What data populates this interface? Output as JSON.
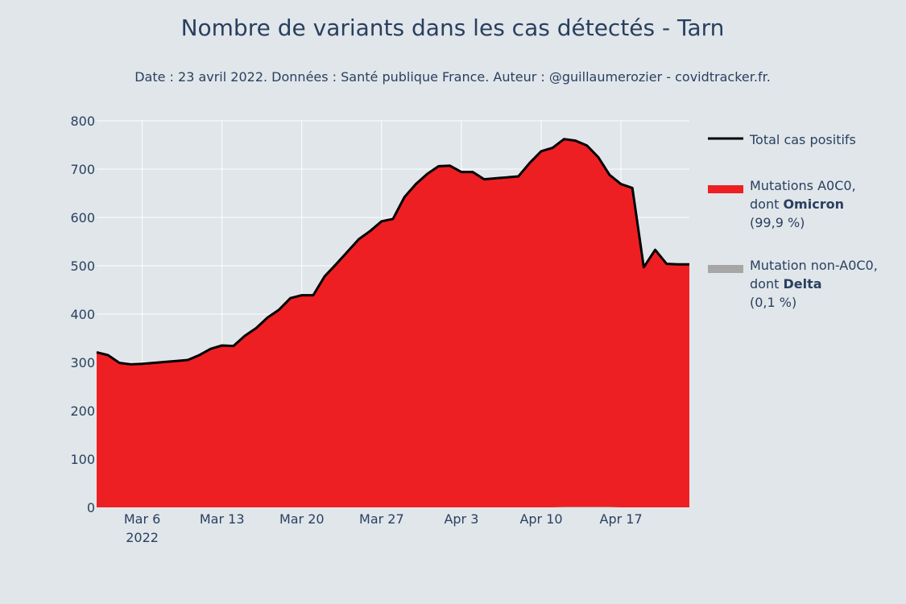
{
  "chart_data": {
    "type": "area",
    "title": "Nombre de variants dans les cas détectés - Tarn",
    "subtitle": "Date : 23 avril 2022. Données : Santé publique France. Auteur : @guillaumerozier - covidtracker.fr.",
    "xlabel": "",
    "ylabel": "",
    "ylim": [
      0,
      800
    ],
    "xlim": [
      "2022-03-01",
      "2022-04-22"
    ],
    "yticks": [
      0,
      100,
      200,
      300,
      400,
      500,
      600,
      700,
      800
    ],
    "xticks": [
      {
        "date": "2022-03-05",
        "label": "Mar 6",
        "label2": "2022"
      },
      {
        "date": "2022-03-12",
        "label": "Mar 13",
        "label2": ""
      },
      {
        "date": "2022-03-19",
        "label": "Mar 20",
        "label2": ""
      },
      {
        "date": "2022-03-26",
        "label": "Mar 27",
        "label2": ""
      },
      {
        "date": "2022-04-02",
        "label": "Apr 3",
        "label2": ""
      },
      {
        "date": "2022-04-09",
        "label": "Apr 10",
        "label2": ""
      },
      {
        "date": "2022-04-16",
        "label": "Apr 17",
        "label2": ""
      }
    ],
    "grid": true,
    "legend_position": "right",
    "x": [
      "2022-03-01",
      "2022-03-02",
      "2022-03-03",
      "2022-03-04",
      "2022-03-05",
      "2022-03-06",
      "2022-03-07",
      "2022-03-08",
      "2022-03-09",
      "2022-03-10",
      "2022-03-11",
      "2022-03-12",
      "2022-03-13",
      "2022-03-14",
      "2022-03-15",
      "2022-03-16",
      "2022-03-17",
      "2022-03-18",
      "2022-03-19",
      "2022-03-20",
      "2022-03-21",
      "2022-03-22",
      "2022-03-23",
      "2022-03-24",
      "2022-03-25",
      "2022-03-26",
      "2022-03-27",
      "2022-03-28",
      "2022-03-29",
      "2022-03-30",
      "2022-03-31",
      "2022-04-01",
      "2022-04-02",
      "2022-04-03",
      "2022-04-04",
      "2022-04-05",
      "2022-04-06",
      "2022-04-07",
      "2022-04-08",
      "2022-04-09",
      "2022-04-10",
      "2022-04-11",
      "2022-04-12",
      "2022-04-13",
      "2022-04-14",
      "2022-04-15",
      "2022-04-16",
      "2022-04-17",
      "2022-04-18",
      "2022-04-19",
      "2022-04-20",
      "2022-04-21",
      "2022-04-22"
    ],
    "series": [
      {
        "name": "Total cas positifs",
        "role": "line",
        "color": "#000000",
        "values": [
          321,
          315,
          299,
          296,
          297,
          299,
          301,
          303,
          305,
          315,
          328,
          335,
          334,
          355,
          371,
          393,
          409,
          433,
          439,
          439,
          478,
          503,
          529,
          555,
          572,
          592,
          597,
          642,
          669,
          690,
          706,
          707,
          694,
          694,
          679,
          681,
          683,
          685,
          713,
          737,
          744,
          762,
          759,
          749,
          725,
          688,
          669,
          661,
          497,
          533,
          504,
          503,
          503
        ]
      },
      {
        "name": "Mutations A0C0, dont Omicron (99,9 %)",
        "legend_lines": [
          "Mutations A0C0,",
          "dont |Omicron|",
          " (99,9 %)"
        ],
        "role": "area",
        "color": "#ee1f22",
        "values": [
          321,
          315,
          299,
          296,
          297,
          299,
          301,
          303,
          305,
          315,
          328,
          335,
          334,
          355,
          371,
          393,
          409,
          433,
          439,
          439,
          478,
          503,
          529,
          555,
          572,
          592,
          597,
          642,
          669,
          690,
          706,
          707,
          694,
          694,
          679,
          681,
          683,
          685,
          713,
          737,
          744,
          762,
          759,
          749,
          725,
          688,
          669,
          661,
          497,
          533,
          504,
          503,
          503
        ]
      },
      {
        "name": "Mutation non-A0C0, dont Delta (0,1 %)",
        "legend_lines": [
          "Mutation non-A0C0,",
          "dont |Delta|",
          " (0,1 %)"
        ],
        "role": "area",
        "color": "#a6a6a6",
        "values": [
          0,
          0,
          0,
          0,
          0,
          0,
          0,
          0,
          0,
          0,
          0,
          0,
          0,
          0,
          0,
          0,
          0,
          0,
          0,
          0,
          0,
          0,
          0,
          0,
          0,
          0,
          0,
          0,
          0,
          0,
          0,
          0,
          0,
          0,
          0,
          0,
          0,
          0,
          0,
          0,
          0,
          1,
          1,
          1,
          1,
          1,
          0,
          0,
          0,
          0,
          0,
          0,
          0
        ]
      }
    ]
  }
}
